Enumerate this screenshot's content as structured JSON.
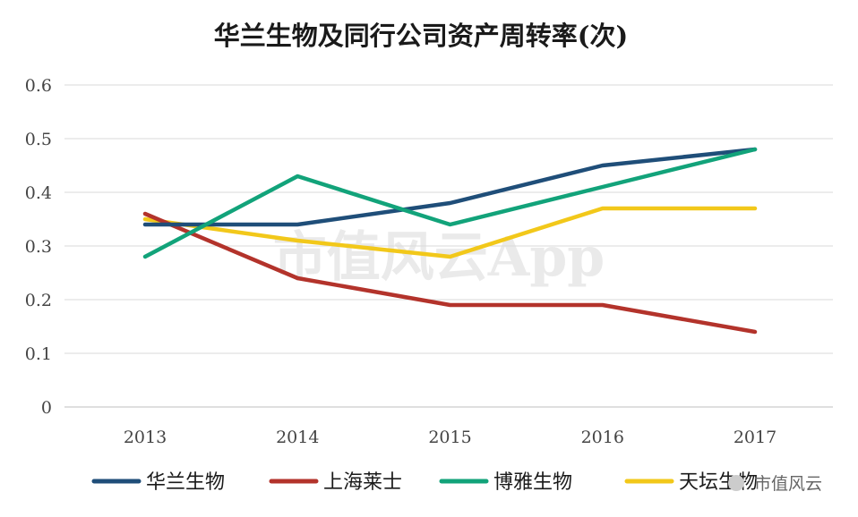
{
  "watermark": "市值风云App",
  "corner_watermark": "市值风云",
  "colors": {
    "grid": "#d9d9d9",
    "axis": "#bfbfbf"
  },
  "chart_data": {
    "type": "line",
    "title": "华兰生物及同行公司资产周转率(次)",
    "xlabel": "",
    "ylabel": "",
    "categories": [
      "2013",
      "2014",
      "2015",
      "2016",
      "2017"
    ],
    "ylim": [
      0,
      0.6
    ],
    "yticks": [
      "0",
      "0.1",
      "0.2",
      "0.3",
      "0.4",
      "0.5",
      "0.6"
    ],
    "grid": true,
    "legend_position": "bottom",
    "series": [
      {
        "name": "华兰生物",
        "color": "#1f4e79",
        "values": [
          0.34,
          0.34,
          0.38,
          0.45,
          0.48
        ]
      },
      {
        "name": "上海莱士",
        "color": "#b3332b",
        "values": [
          0.36,
          0.24,
          0.19,
          0.19,
          0.14
        ]
      },
      {
        "name": "博雅生物",
        "color": "#12a37a",
        "values": [
          0.28,
          0.43,
          0.34,
          0.41,
          0.48
        ]
      },
      {
        "name": "天坛生物",
        "color": "#f2c81a",
        "values": [
          0.35,
          0.31,
          0.28,
          0.37,
          0.37
        ]
      }
    ]
  }
}
